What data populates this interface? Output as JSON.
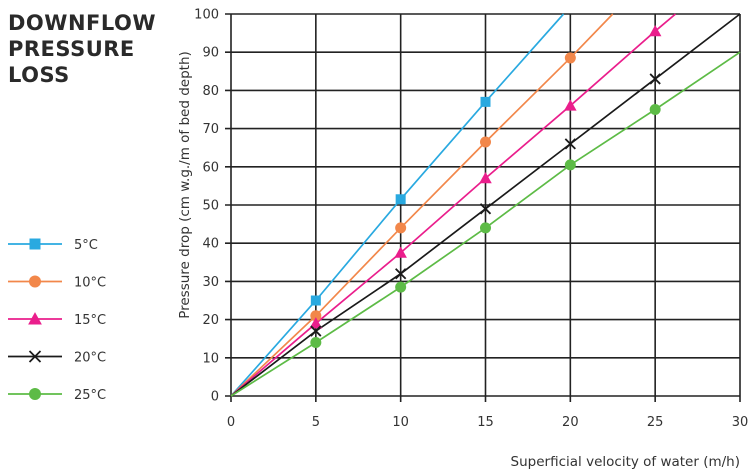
{
  "chart_data": {
    "type": "line",
    "title_lines": [
      "DOWNFLOW",
      "PRESSURE",
      "LOSS"
    ],
    "xlabel": "Superficial velocity of water (m/h)",
    "ylabel": "Pressure drop (cm w.g./m of bed depth)",
    "xlim": [
      0,
      30
    ],
    "ylim": [
      0,
      100
    ],
    "xticks": [
      0,
      5,
      10,
      15,
      20,
      25,
      30
    ],
    "yticks": [
      0,
      10,
      20,
      30,
      40,
      50,
      60,
      70,
      80,
      90,
      100
    ],
    "grid": true,
    "legend_position": "left",
    "series": [
      {
        "name": "5°C",
        "color": "#29a9e0",
        "marker": "square",
        "x": [
          0,
          5,
          10,
          15
        ],
        "y": [
          0,
          25,
          51.5,
          77
        ],
        "line_to": [
          19.6,
          100
        ]
      },
      {
        "name": "10°C",
        "color": "#f2874a",
        "marker": "circle",
        "x": [
          0,
          5,
          10,
          15,
          20
        ],
        "y": [
          0,
          21,
          44,
          66.5,
          88.5
        ],
        "line_to": [
          22.5,
          100
        ]
      },
      {
        "name": "15°C",
        "color": "#ea1e8c",
        "marker": "triangle",
        "x": [
          0,
          5,
          10,
          15,
          20,
          25
        ],
        "y": [
          0,
          19,
          37.5,
          57,
          76,
          95.5
        ],
        "line_to": [
          26.2,
          100
        ]
      },
      {
        "name": "20°C",
        "color": "#1a1a1a",
        "marker": "x",
        "x": [
          0,
          5,
          10,
          15,
          20,
          25
        ],
        "y": [
          0,
          17,
          32,
          49,
          66,
          83
        ],
        "line_to": [
          30,
          100
        ]
      },
      {
        "name": "25°C",
        "color": "#5dbb46",
        "marker": "circle",
        "x": [
          0,
          5,
          10,
          15,
          20,
          25
        ],
        "y": [
          0,
          14,
          28.5,
          44,
          60.5,
          75
        ],
        "line_to": [
          30,
          90
        ]
      }
    ]
  }
}
